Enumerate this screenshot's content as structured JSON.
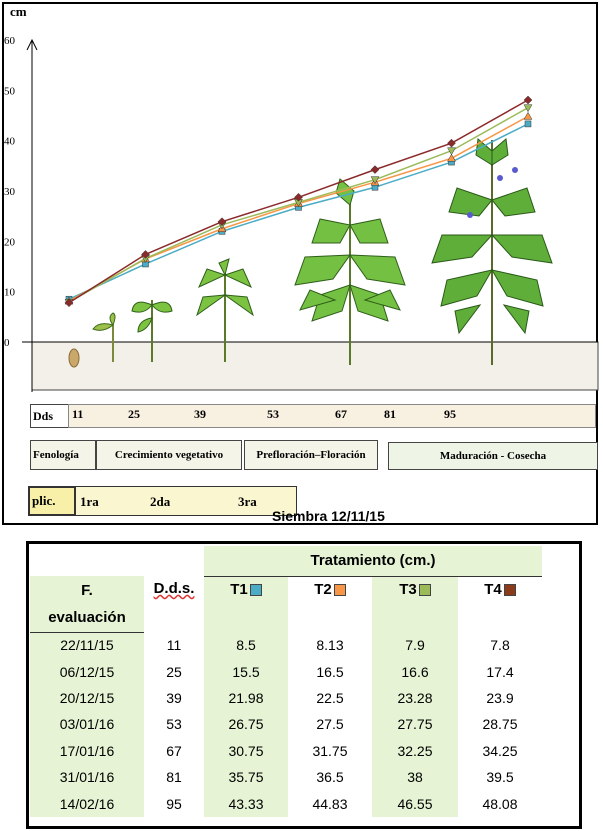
{
  "chart_data": {
    "type": "line",
    "ylabel": "cm",
    "ylim": [
      0,
      60
    ],
    "yticks": [
      0,
      10,
      20,
      30,
      40,
      50,
      60
    ],
    "x": [
      11,
      25,
      39,
      53,
      67,
      81,
      95
    ],
    "series": [
      {
        "name": "T1",
        "values": [
          8.5,
          15.5,
          21.98,
          26.75,
          30.75,
          35.75,
          43.33
        ],
        "color": "#4bacc6"
      },
      {
        "name": "T2",
        "values": [
          8.13,
          16.5,
          22.5,
          27.5,
          31.75,
          36.5,
          44.83
        ],
        "color": "#f79646"
      },
      {
        "name": "T3",
        "values": [
          7.9,
          16.6,
          23.28,
          27.75,
          32.25,
          38,
          46.55
        ],
        "color": "#9bbb59"
      },
      {
        "name": "T4",
        "values": [
          7.8,
          17.4,
          23.9,
          28.75,
          34.25,
          39.5,
          48.08
        ],
        "color": "#8b2a2a"
      }
    ],
    "grid": false
  },
  "timeline": {
    "dds_label": "Dds",
    "dds_values": [
      "11",
      "25",
      "39",
      "53",
      "67",
      "81",
      "95"
    ],
    "fenologia_label": "Fenología",
    "phases": [
      "Crecimiento vegetativo",
      "Prefloración–Floración",
      "Maduración - Cosecha"
    ],
    "aplic_label": "plic.",
    "applications": [
      "1ra",
      "2da",
      "3ra"
    ],
    "siembra": "Siembra 12/11/15"
  },
  "table": {
    "group_header": "Tratamiento (cm.)",
    "col_date_line1": "F.",
    "col_date_line2": "evaluación",
    "col_dds": "D.d.s.",
    "treatments": [
      {
        "label": "T1",
        "color": "#4bacc6"
      },
      {
        "label": "T2",
        "color": "#f79646"
      },
      {
        "label": "T3",
        "color": "#9bbb59"
      },
      {
        "label": "T4",
        "color": "#8b3a1a"
      }
    ],
    "rows": [
      {
        "date": "22/11/15",
        "dds": "11",
        "t1": "8.5",
        "t2": "8.13",
        "t3": "7.9",
        "t4": "7.8"
      },
      {
        "date": "06/12/15",
        "dds": "25",
        "t1": "15.5",
        "t2": "16.5",
        "t3": "16.6",
        "t4": "17.4"
      },
      {
        "date": "20/12/15",
        "dds": "39",
        "t1": "21.98",
        "t2": "22.5",
        "t3": "23.28",
        "t4": "23.9"
      },
      {
        "date": "03/01/16",
        "dds": "53",
        "t1": "26.75",
        "t2": "27.5",
        "t3": "27.75",
        "t4": "28.75"
      },
      {
        "date": "17/01/16",
        "dds": "67",
        "t1": "30.75",
        "t2": "31.75",
        "t3": "32.25",
        "t4": "34.25"
      },
      {
        "date": "31/01/16",
        "dds": "81",
        "t1": "35.75",
        "t2": "36.5",
        "t3": "38",
        "t4": "39.5"
      },
      {
        "date": "14/02/16",
        "dds": "95",
        "t1": "43.33",
        "t2": "44.83",
        "t3": "46.55",
        "t4": "48.08"
      }
    ]
  }
}
